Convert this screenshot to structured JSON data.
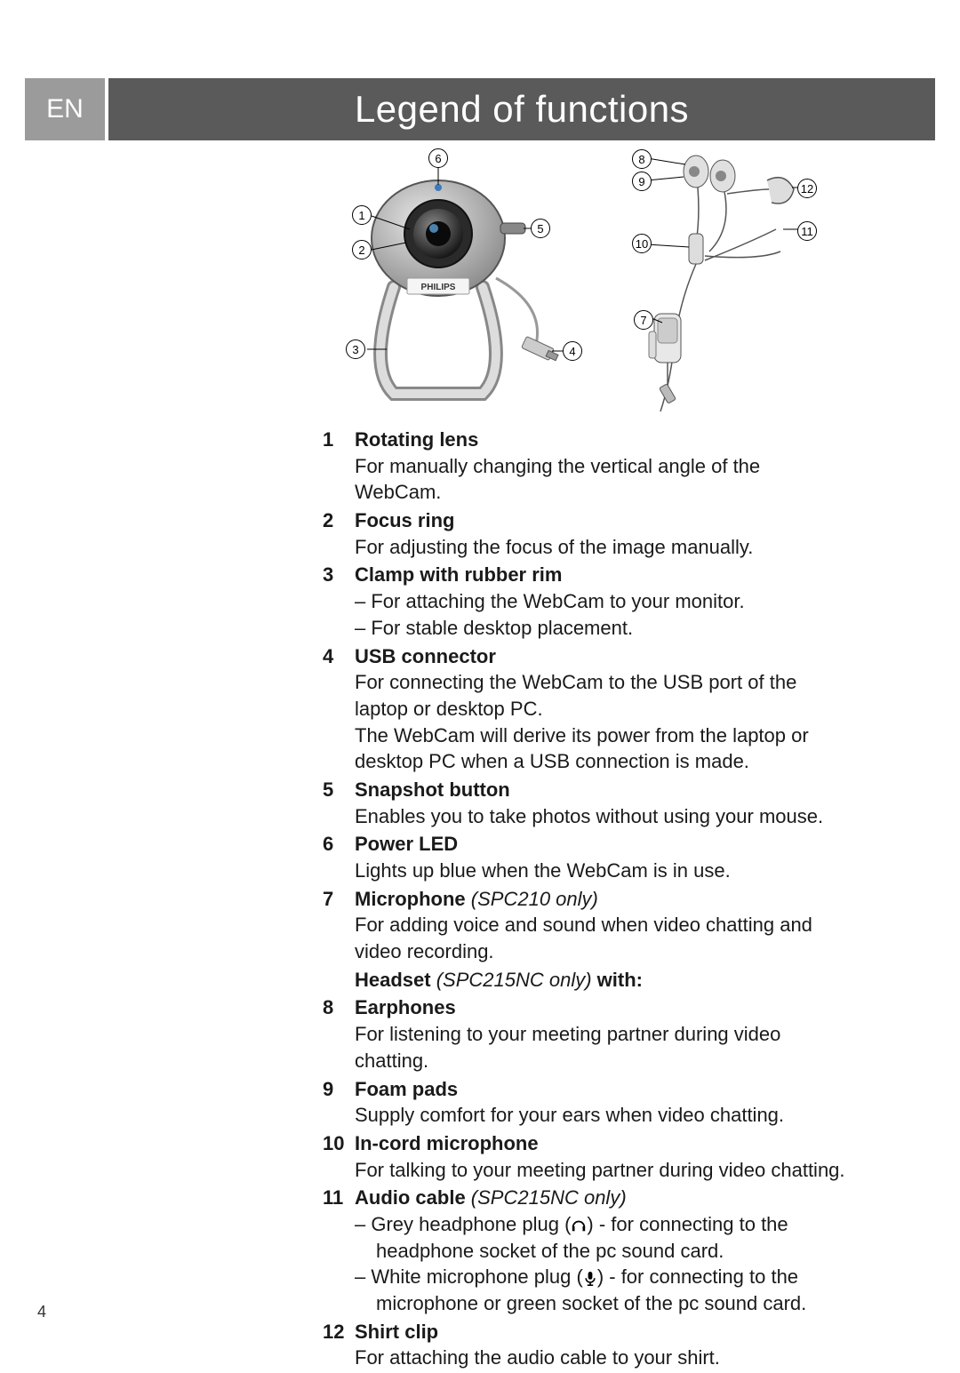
{
  "lang": "EN",
  "title": "Legend of functions",
  "brand": "PHILIPS",
  "pageNumber": "4",
  "colors": {
    "tab": "#9b9b9b",
    "bar": "#5a5a5a",
    "text": "#1a1a1a"
  },
  "diagram": {
    "callouts_webcam": [
      "1",
      "2",
      "3",
      "4",
      "5",
      "6"
    ],
    "callouts_headset": [
      "7",
      "8",
      "9",
      "10",
      "11",
      "12"
    ]
  },
  "items": [
    {
      "num": "1",
      "title": "Rotating lens",
      "desc": "For manually changing the vertical angle of the WebCam."
    },
    {
      "num": "2",
      "title": "Focus ring",
      "desc": "For adjusting the focus of the image manually."
    },
    {
      "num": "3",
      "title": "Clamp with rubber rim",
      "subs": [
        "For attaching the WebCam to your monitor.",
        "For stable desktop placement."
      ]
    },
    {
      "num": "4",
      "title": "USB connector",
      "desc": "For connecting the WebCam to the USB port of the laptop or desktop PC.",
      "desc2": "The WebCam will derive its power from the laptop or desktop PC when a USB connection is made."
    },
    {
      "num": "5",
      "title": "Snapshot button",
      "desc": "Enables you to take photos without using your mouse."
    },
    {
      "num": "6",
      "title": "Power LED",
      "desc": "Lights up blue when the WebCam is in use."
    },
    {
      "num": "7",
      "title": "Microphone",
      "qual": " (SPC210 only)",
      "desc": "For adding voice and sound when video chatting and video recording."
    }
  ],
  "headsetLine": {
    "prefix": "Headset",
    "qual": " (SPC215NC only) ",
    "suffix": "with:"
  },
  "items2": [
    {
      "num": "8",
      "title": "Earphones",
      "desc": "For listening to your meeting partner during video chatting."
    },
    {
      "num": "9",
      "title": "Foam pads",
      "desc": "Supply comfort for your ears when video chatting."
    },
    {
      "num": "10",
      "title": "In-cord microphone",
      "desc": "For talking to your meeting partner during video chatting."
    },
    {
      "num": "11",
      "title": "Audio cable",
      "qual": " (SPC215NC only)",
      "subsIcon": [
        {
          "pre": "Grey headphone plug (",
          "icon": "headphone",
          "post": ") - for connecting to the",
          "cont": "headphone socket of the pc sound card."
        },
        {
          "pre": "White microphone plug (",
          "icon": "mic",
          "post": ") - for connecting to the",
          "cont": "microphone or green socket of the pc sound card."
        }
      ]
    },
    {
      "num": "12",
      "title": "Shirt clip",
      "desc": "For attaching the audio cable to your shirt."
    }
  ]
}
